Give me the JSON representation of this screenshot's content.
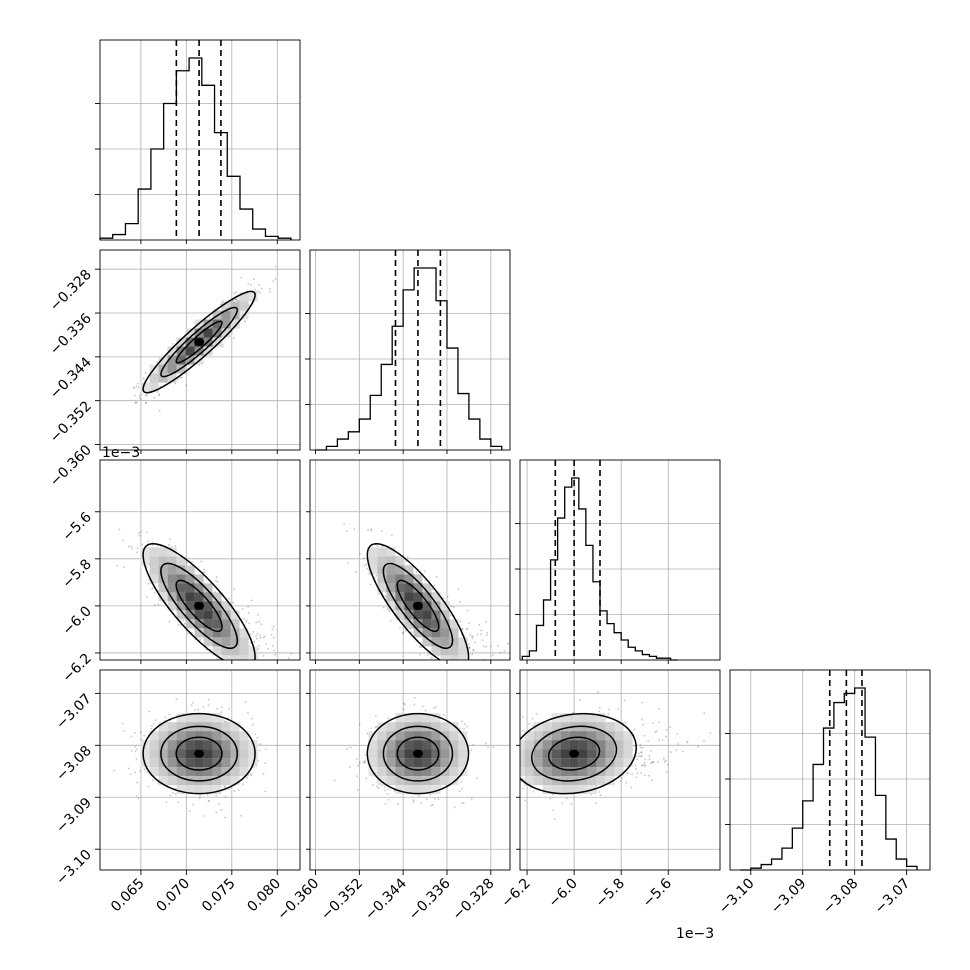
{
  "chart_data": {
    "type": "scatter",
    "title": "",
    "parameters": [
      {
        "range": [
          0.0605,
          0.0825
        ],
        "ticks": [
          "0.065",
          "0.070",
          "0.075",
          "0.080"
        ],
        "tick_values": [
          0.065,
          0.07,
          0.075,
          0.08
        ],
        "offset_text": ""
      },
      {
        "range": [
          -0.361,
          -0.3245
        ],
        "ticks": [
          "−0.360",
          "−0.352",
          "−0.344",
          "−0.336",
          "−0.328"
        ],
        "tick_values": [
          -0.36,
          -0.352,
          -0.344,
          -0.336,
          -0.328
        ],
        "offset_text": ""
      },
      {
        "range": [
          -6.23,
          -5.38
        ],
        "ticks": [
          "−6.2",
          "−6.0",
          "−5.8",
          "−5.6"
        ],
        "tick_values": [
          -6.2,
          -6.0,
          -5.8,
          -5.6
        ],
        "offset_text": "1e−3"
      },
      {
        "range": [
          -3.104,
          -3.0655
        ],
        "ticks": [
          "−3.10",
          "−3.09",
          "−3.08",
          "−3.07"
        ],
        "tick_values": [
          -3.1,
          -3.09,
          -3.08,
          -3.07
        ],
        "offset_text": ""
      }
    ],
    "diagonal": [
      {
        "bins": [
          0.0612,
          0.0626,
          0.064,
          0.0654,
          0.0668,
          0.0682,
          0.0696,
          0.071,
          0.0724,
          0.0738,
          0.0752,
          0.0766,
          0.078,
          0.0794,
          0.0808
        ],
        "counts": [
          0.01,
          0.03,
          0.09,
          0.28,
          0.5,
          0.75,
          0.93,
          1.0,
          0.85,
          0.59,
          0.35,
          0.17,
          0.06,
          0.02,
          0.01
        ],
        "quantiles": [
          0.0689,
          0.0714,
          0.0738
        ]
      },
      {
        "bins": [
          -0.359,
          -0.357,
          -0.355,
          -0.353,
          -0.351,
          -0.349,
          -0.347,
          -0.345,
          -0.343,
          -0.341,
          -0.339,
          -0.337,
          -0.335,
          -0.333,
          -0.331,
          -0.329,
          -0.327
        ],
        "counts": [
          0.0,
          0.02,
          0.06,
          0.1,
          0.17,
          0.3,
          0.47,
          0.68,
          0.88,
          1.0,
          1.0,
          0.82,
          0.56,
          0.31,
          0.17,
          0.06,
          0.02
        ],
        "quantiles": [
          -0.3454,
          -0.3413,
          -0.3372
        ]
      },
      {
        "bins": [
          -6.205,
          -6.175,
          -6.145,
          -6.115,
          -6.085,
          -6.055,
          -6.025,
          -5.995,
          -5.965,
          -5.935,
          -5.905,
          -5.875,
          -5.845,
          -5.815,
          -5.785,
          -5.755,
          -5.725,
          -5.695,
          -5.665,
          -5.635,
          -5.605,
          -5.575
        ],
        "counts": [
          0.02,
          0.05,
          0.19,
          0.33,
          0.55,
          0.78,
          0.95,
          1.0,
          0.83,
          0.63,
          0.43,
          0.27,
          0.2,
          0.15,
          0.11,
          0.07,
          0.05,
          0.03,
          0.02,
          0.01,
          0.01,
          0.0
        ],
        "quantiles": [
          -6.08,
          -6.0,
          -5.89
        ]
      },
      {
        "bins": [
          -3.101,
          -3.099,
          -3.097,
          -3.095,
          -3.093,
          -3.091,
          -3.089,
          -3.087,
          -3.085,
          -3.083,
          -3.081,
          -3.079,
          -3.077,
          -3.075,
          -3.073,
          -3.071,
          -3.069
        ],
        "counts": [
          0.0,
          0.01,
          0.03,
          0.06,
          0.12,
          0.23,
          0.38,
          0.58,
          0.78,
          0.92,
          0.97,
          1.0,
          0.73,
          0.41,
          0.17,
          0.06,
          0.02
        ],
        "quantiles": [
          -3.0848,
          -3.0816,
          -3.0786
        ]
      }
    ],
    "pairs": [
      {
        "row": 1,
        "col": 0,
        "center": [
          0.0714,
          -0.3413
        ],
        "spread": [
          0.0028,
          0.0042
        ],
        "rho": 0.93,
        "contour_rx": [
          0.9,
          1.5,
          2.2
        ],
        "samples": 900
      },
      {
        "row": 2,
        "col": 0,
        "center": [
          0.0714,
          -6.0
        ],
        "spread": [
          0.0028,
          0.12
        ],
        "rho": -0.82,
        "contour_rx": [
          0.9,
          1.5,
          2.2
        ],
        "samples": 900
      },
      {
        "row": 2,
        "col": 1,
        "center": [
          -0.3413,
          -6.0
        ],
        "spread": [
          0.0042,
          0.12
        ],
        "rho": -0.82,
        "contour_rx": [
          0.9,
          1.5,
          2.2
        ],
        "samples": 900
      },
      {
        "row": 3,
        "col": 0,
        "center": [
          0.0714,
          -3.0816
        ],
        "spread": [
          0.0028,
          0.0035
        ],
        "rho": 0.0,
        "contour_rx": [
          0.9,
          1.5,
          2.2
        ],
        "samples": 900
      },
      {
        "row": 3,
        "col": 1,
        "center": [
          -0.3413,
          -3.0816
        ],
        "spread": [
          0.0042,
          0.0035
        ],
        "rho": 0.0,
        "contour_rx": [
          0.9,
          1.5,
          2.2
        ],
        "samples": 900
      },
      {
        "row": 3,
        "col": 2,
        "center": [
          -6.0,
          -3.0816
        ],
        "spread": [
          0.12,
          0.0035
        ],
        "rho": 0.15,
        "contour_rx": [
          0.9,
          1.5,
          2.2
        ],
        "samples": 900
      }
    ],
    "colors": {
      "scatter": "#333333",
      "density_dark": "#333333",
      "density_light": "#f2f2f2",
      "lines": "#000000"
    }
  }
}
